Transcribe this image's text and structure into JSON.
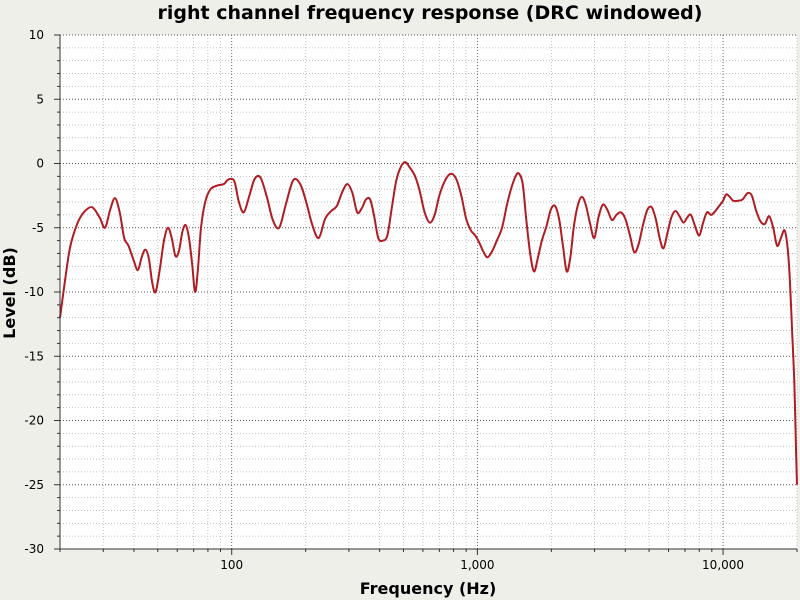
{
  "chart_data": {
    "type": "line",
    "title": "right channel frequency response (DRC windowed)",
    "xlabel": "Frequency (Hz)",
    "ylabel": "Level (dB)",
    "x_scale": "log",
    "xlim": [
      20,
      20000
    ],
    "ylim": [
      -30,
      10
    ],
    "x_ticks": [
      {
        "value": 100,
        "label": "100"
      },
      {
        "value": 1000,
        "label": "1,000"
      },
      {
        "value": 10000,
        "label": "10,000"
      }
    ],
    "y_ticks": [
      {
        "value": 10,
        "label": "10"
      },
      {
        "value": 5,
        "label": "5"
      },
      {
        "value": 0,
        "label": "0"
      },
      {
        "value": -5,
        "label": "-5"
      },
      {
        "value": -10,
        "label": "-10"
      },
      {
        "value": -15,
        "label": "-15"
      },
      {
        "value": -20,
        "label": "-20"
      },
      {
        "value": -25,
        "label": "-25"
      },
      {
        "value": -30,
        "label": "-30"
      }
    ],
    "grid": true,
    "line_color": "#b01c22",
    "series": [
      {
        "points": [
          [
            20,
            -12.0
          ],
          [
            21,
            -9.0
          ],
          [
            22,
            -6.5
          ],
          [
            23.5,
            -4.7
          ],
          [
            25,
            -3.8
          ],
          [
            27,
            -3.4
          ],
          [
            29,
            -4.2
          ],
          [
            30.5,
            -5.0
          ],
          [
            32,
            -3.6
          ],
          [
            33.5,
            -2.7
          ],
          [
            35,
            -3.8
          ],
          [
            36.5,
            -5.8
          ],
          [
            38,
            -6.4
          ],
          [
            40,
            -7.6
          ],
          [
            41.5,
            -8.3
          ],
          [
            43,
            -7.3
          ],
          [
            44.5,
            -6.7
          ],
          [
            46,
            -7.4
          ],
          [
            47.5,
            -9.3
          ],
          [
            49,
            -10.0
          ],
          [
            51,
            -8.2
          ],
          [
            53,
            -6.0
          ],
          [
            55,
            -5.0
          ],
          [
            57,
            -5.8
          ],
          [
            59,
            -7.2
          ],
          [
            61,
            -6.8
          ],
          [
            63,
            -5.3
          ],
          [
            65,
            -4.8
          ],
          [
            67,
            -5.8
          ],
          [
            69,
            -7.8
          ],
          [
            71,
            -10.0
          ],
          [
            73,
            -8.0
          ],
          [
            75,
            -5.0
          ],
          [
            78,
            -3.0
          ],
          [
            82,
            -2.0
          ],
          [
            88,
            -1.7
          ],
          [
            93,
            -1.6
          ],
          [
            96,
            -1.3
          ],
          [
            100,
            -1.2
          ],
          [
            103,
            -1.5
          ],
          [
            107,
            -3.0
          ],
          [
            112,
            -3.8
          ],
          [
            118,
            -2.5
          ],
          [
            124,
            -1.2
          ],
          [
            131,
            -1.1
          ],
          [
            139,
            -2.6
          ],
          [
            147,
            -4.4
          ],
          [
            156,
            -5.0
          ],
          [
            166,
            -3.2
          ],
          [
            178,
            -1.3
          ],
          [
            190,
            -1.6
          ],
          [
            201,
            -3.0
          ],
          [
            213,
            -4.8
          ],
          [
            226,
            -5.8
          ],
          [
            240,
            -4.3
          ],
          [
            254,
            -3.7
          ],
          [
            268,
            -3.3
          ],
          [
            282,
            -2.2
          ],
          [
            296,
            -1.6
          ],
          [
            310,
            -2.3
          ],
          [
            324,
            -3.8
          ],
          [
            338,
            -3.5
          ],
          [
            352,
            -2.8
          ],
          [
            366,
            -2.8
          ],
          [
            380,
            -4.1
          ],
          [
            395,
            -5.8
          ],
          [
            412,
            -6.0
          ],
          [
            430,
            -5.6
          ],
          [
            448,
            -3.5
          ],
          [
            468,
            -1.3
          ],
          [
            490,
            -0.2
          ],
          [
            510,
            0.1
          ],
          [
            530,
            -0.3
          ],
          [
            555,
            -0.9
          ],
          [
            580,
            -2.0
          ],
          [
            610,
            -3.8
          ],
          [
            640,
            -4.6
          ],
          [
            670,
            -4.0
          ],
          [
            700,
            -2.5
          ],
          [
            740,
            -1.3
          ],
          [
            780,
            -0.8
          ],
          [
            820,
            -1.2
          ],
          [
            860,
            -2.5
          ],
          [
            900,
            -4.3
          ],
          [
            940,
            -5.2
          ],
          [
            980,
            -5.6
          ],
          [
            1020,
            -6.2
          ],
          [
            1060,
            -6.9
          ],
          [
            1100,
            -7.3
          ],
          [
            1150,
            -6.8
          ],
          [
            1200,
            -6.0
          ],
          [
            1260,
            -5.0
          ],
          [
            1320,
            -3.2
          ],
          [
            1380,
            -1.8
          ],
          [
            1440,
            -0.9
          ],
          [
            1480,
            -0.8
          ],
          [
            1530,
            -1.6
          ],
          [
            1580,
            -4.3
          ],
          [
            1640,
            -7.0
          ],
          [
            1700,
            -8.4
          ],
          [
            1760,
            -7.4
          ],
          [
            1830,
            -6.0
          ],
          [
            1910,
            -4.9
          ],
          [
            1990,
            -3.6
          ],
          [
            2070,
            -3.3
          ],
          [
            2150,
            -4.3
          ],
          [
            2230,
            -6.4
          ],
          [
            2310,
            -8.4
          ],
          [
            2390,
            -7.3
          ],
          [
            2470,
            -4.9
          ],
          [
            2560,
            -3.3
          ],
          [
            2660,
            -2.6
          ],
          [
            2760,
            -3.2
          ],
          [
            2870,
            -4.6
          ],
          [
            2990,
            -5.8
          ],
          [
            3110,
            -4.2
          ],
          [
            3240,
            -3.2
          ],
          [
            3380,
            -3.6
          ],
          [
            3530,
            -4.4
          ],
          [
            3680,
            -4.0
          ],
          [
            3840,
            -3.8
          ],
          [
            4000,
            -4.3
          ],
          [
            4180,
            -5.6
          ],
          [
            4350,
            -6.9
          ],
          [
            4530,
            -6.3
          ],
          [
            4720,
            -4.8
          ],
          [
            4920,
            -3.6
          ],
          [
            5120,
            -3.4
          ],
          [
            5320,
            -4.3
          ],
          [
            5520,
            -5.8
          ],
          [
            5720,
            -6.6
          ],
          [
            5940,
            -5.4
          ],
          [
            6160,
            -4.2
          ],
          [
            6400,
            -3.7
          ],
          [
            6650,
            -4.1
          ],
          [
            6900,
            -4.6
          ],
          [
            7150,
            -4.2
          ],
          [
            7400,
            -4.0
          ],
          [
            7700,
            -4.9
          ],
          [
            8000,
            -5.6
          ],
          [
            8300,
            -4.6
          ],
          [
            8600,
            -3.8
          ],
          [
            8950,
            -4.0
          ],
          [
            9300,
            -3.7
          ],
          [
            9650,
            -3.3
          ],
          [
            10000,
            -2.9
          ],
          [
            10300,
            -2.4
          ],
          [
            10650,
            -2.6
          ],
          [
            11000,
            -2.9
          ],
          [
            11500,
            -2.9
          ],
          [
            12000,
            -2.8
          ],
          [
            12600,
            -2.3
          ],
          [
            13100,
            -2.5
          ],
          [
            13600,
            -3.6
          ],
          [
            14200,
            -4.5
          ],
          [
            14800,
            -4.7
          ],
          [
            15400,
            -4.1
          ],
          [
            16000,
            -5.0
          ],
          [
            16600,
            -6.4
          ],
          [
            17200,
            -5.8
          ],
          [
            17800,
            -5.2
          ],
          [
            18300,
            -6.5
          ],
          [
            18700,
            -9.0
          ],
          [
            19100,
            -13.0
          ],
          [
            19500,
            -17.0
          ],
          [
            19800,
            -22.0
          ],
          [
            20000,
            -25.0
          ]
        ]
      }
    ]
  }
}
